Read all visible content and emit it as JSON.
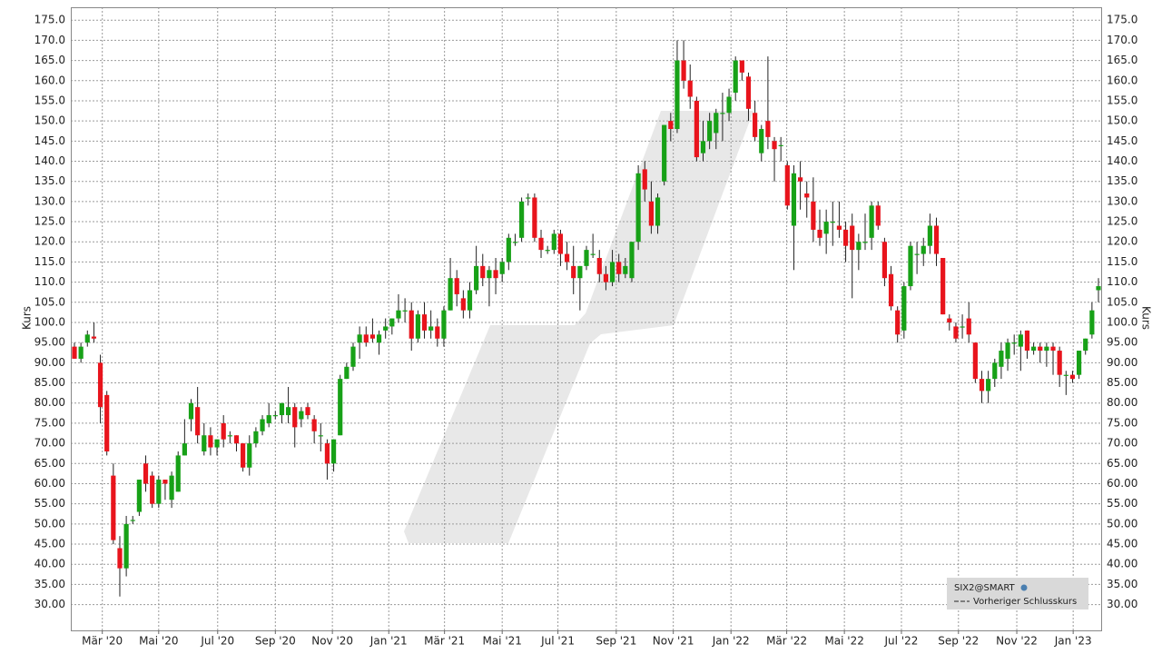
{
  "chart_data": {
    "type": "candlestick",
    "y_label": "Kurs",
    "up_color": "#17a117",
    "down_color": "#e8141c",
    "grid": true,
    "legend_position": "bottom-right",
    "legend": [
      "SIX2@SMART",
      "Vorheriger Schlusskurs"
    ],
    "open": [
      94,
      91,
      95,
      96.5,
      90,
      82,
      62,
      44,
      39,
      51,
      53,
      65,
      62,
      55,
      61,
      56,
      58,
      67,
      76,
      79,
      68,
      72,
      69,
      75,
      72,
      72,
      70,
      64,
      70,
      73,
      75,
      77,
      77,
      77,
      79,
      76,
      79,
      76,
      72,
      70,
      65,
      72,
      86,
      89,
      95,
      97,
      97,
      95,
      98,
      99,
      101,
      103,
      103,
      96,
      102,
      98,
      99,
      96,
      103,
      111,
      106,
      103,
      108,
      114,
      111,
      113,
      112,
      115,
      120,
      121,
      131,
      131,
      121,
      118,
      118,
      122,
      117,
      114,
      111,
      114,
      117,
      116,
      112,
      110,
      115,
      112,
      111,
      120,
      138,
      130,
      124,
      135,
      150,
      148,
      165,
      160,
      155,
      142,
      145,
      147,
      152,
      152,
      157,
      165,
      161,
      152,
      142,
      150,
      145,
      144,
      139,
      124,
      136,
      132,
      130,
      123,
      122,
      125,
      124,
      123,
      124,
      118,
      120,
      121,
      129,
      120,
      112,
      103,
      98,
      109,
      117,
      117,
      119,
      124,
      116,
      101,
      99,
      99,
      101,
      95,
      86,
      83,
      86,
      89,
      91,
      95,
      94,
      98,
      93,
      94,
      93,
      94,
      93,
      87,
      87,
      87,
      93,
      97,
      108
    ],
    "high": [
      95,
      95,
      98,
      100,
      92,
      83,
      65,
      47,
      52,
      52,
      61,
      67,
      63,
      62,
      61,
      63,
      68,
      76,
      81,
      84,
      75,
      74,
      71,
      77,
      73,
      72,
      70,
      72,
      74,
      77,
      80,
      78,
      80,
      84,
      80,
      79,
      80,
      77,
      75,
      71,
      71,
      87,
      90,
      95,
      99,
      99,
      101,
      98,
      101,
      101,
      107,
      106,
      105,
      103,
      105,
      103,
      101,
      104,
      116,
      113,
      108,
      110,
      119,
      117,
      114,
      116,
      116,
      122,
      122,
      131,
      132,
      132,
      123,
      119,
      123,
      123,
      120,
      119,
      114,
      119,
      122,
      118,
      114,
      118,
      117,
      116,
      120,
      139,
      140,
      135,
      132,
      149,
      152,
      170,
      170,
      164,
      156,
      150,
      152,
      153,
      157,
      158,
      166,
      165,
      162,
      155,
      149,
      166,
      146,
      146,
      140,
      139,
      140,
      135,
      136,
      128,
      128,
      130,
      130,
      125,
      127,
      122,
      127,
      130,
      130,
      121,
      114,
      104,
      110,
      120,
      120,
      121,
      127,
      126,
      116,
      102,
      100,
      102,
      105,
      95,
      88,
      88,
      91,
      95,
      96,
      97,
      98,
      98,
      95,
      95,
      95,
      95,
      94,
      88,
      88,
      93,
      96,
      105,
      111
    ],
    "low": [
      91,
      90,
      94,
      95,
      75,
      67,
      45,
      32,
      37,
      50,
      52,
      58,
      54,
      54,
      56,
      54,
      58,
      67,
      73,
      70,
      67,
      67,
      67,
      69,
      70,
      68,
      63,
      62,
      69,
      72,
      74,
      76,
      75,
      75,
      69,
      74,
      76,
      70,
      68,
      61,
      63,
      72,
      86,
      88,
      91,
      94,
      95,
      92,
      96,
      97,
      100,
      100,
      93,
      95,
      96,
      96,
      94,
      94,
      103,
      104,
      101,
      101,
      107,
      109,
      104,
      107,
      110,
      113,
      119,
      120,
      129,
      120,
      116,
      117,
      117,
      114,
      113,
      107,
      103,
      113,
      116,
      110,
      108,
      109,
      110,
      111,
      110,
      118,
      130,
      122,
      122,
      134,
      145,
      147,
      158,
      153,
      140,
      140,
      143,
      143,
      145,
      150,
      155,
      160,
      150,
      145,
      140,
      143,
      135,
      140,
      128,
      113,
      128,
      126,
      120,
      119,
      117,
      119,
      121,
      115,
      106,
      113,
      118,
      118,
      123,
      109,
      103,
      95,
      96,
      108,
      112,
      114,
      117,
      114,
      102,
      98,
      95,
      96,
      95,
      85,
      80,
      80,
      84,
      86,
      88,
      92,
      88,
      91,
      92,
      90,
      89,
      87,
      84,
      82,
      85,
      86,
      92,
      96,
      105
    ],
    "close": [
      91,
      94,
      97,
      96,
      79,
      68,
      46,
      39,
      50,
      51,
      61,
      60,
      55,
      61,
      60,
      62,
      67,
      70,
      80,
      72,
      72,
      69,
      71,
      71,
      72,
      70,
      64,
      70,
      73,
      76,
      77,
      77,
      80,
      79,
      74,
      78,
      77,
      73,
      72,
      65,
      71,
      86,
      89,
      94,
      97,
      95,
      96,
      97,
      99,
      101,
      103,
      103,
      96,
      102,
      98,
      99,
      96,
      103,
      111,
      107,
      103,
      108,
      114,
      111,
      113,
      111,
      115,
      121,
      120,
      130,
      131,
      121,
      118,
      118,
      122,
      117,
      115,
      111,
      114,
      118,
      117,
      112,
      110,
      115,
      112,
      114,
      120,
      137,
      133,
      124,
      131,
      149,
      148,
      165,
      160,
      156,
      141,
      145,
      150,
      152,
      152,
      156,
      165,
      162,
      153,
      146,
      148,
      146,
      143,
      144,
      129,
      137,
      135,
      131,
      123,
      121,
      125,
      125,
      123,
      119,
      118,
      120,
      120,
      129,
      124,
      111,
      104,
      97,
      109,
      119,
      117,
      119,
      124,
      117,
      102,
      100,
      96,
      99,
      97,
      86,
      83,
      86,
      90,
      93,
      95,
      95,
      97,
      93,
      94,
      93,
      94,
      93,
      87,
      87,
      86,
      93,
      96,
      103,
      109
    ],
    "xlim": [
      -0.56,
      158.42
    ],
    "xticks": [
      {
        "value": 4.3,
        "label": "Mär '20"
      },
      {
        "value": 13.0,
        "label": "Mai '20"
      },
      {
        "value": 22.1,
        "label": "Jul '20"
      },
      {
        "value": 31.0,
        "label": "Sep '20"
      },
      {
        "value": 39.8,
        "label": "Nov '20"
      },
      {
        "value": 48.5,
        "label": "Jan '21"
      },
      {
        "value": 57.1,
        "label": "Mär '21"
      },
      {
        "value": 66.0,
        "label": "Mai '21"
      },
      {
        "value": 74.6,
        "label": "Jul '21"
      },
      {
        "value": 83.6,
        "label": "Sep '21"
      },
      {
        "value": 92.4,
        "label": "Nov '21"
      },
      {
        "value": 101.3,
        "label": "Jan '22"
      },
      {
        "value": 109.9,
        "label": "Mär '22"
      },
      {
        "value": 118.8,
        "label": "Mai '22"
      },
      {
        "value": 127.6,
        "label": "Jul '22"
      },
      {
        "value": 136.4,
        "label": "Sep '22"
      },
      {
        "value": 145.4,
        "label": "Nov '22"
      },
      {
        "value": 154.1,
        "label": "Jan '23"
      }
    ],
    "ylim": [
      23.6,
      178.2
    ],
    "yticks": [
      {
        "value": 30,
        "label": "30.00"
      },
      {
        "value": 35,
        "label": "35.00"
      },
      {
        "value": 40,
        "label": "40.00"
      },
      {
        "value": 45,
        "label": "45.00"
      },
      {
        "value": 50,
        "label": "50.00"
      },
      {
        "value": 55,
        "label": "55.00"
      },
      {
        "value": 60,
        "label": "60.00"
      },
      {
        "value": 65,
        "label": "65.00"
      },
      {
        "value": 70,
        "label": "70.00"
      },
      {
        "value": 75,
        "label": "75.00"
      },
      {
        "value": 80,
        "label": "80.00"
      },
      {
        "value": 85,
        "label": "85.00"
      },
      {
        "value": 90,
        "label": "90.00"
      },
      {
        "value": 95,
        "label": "95.00"
      },
      {
        "value": 100,
        "label": "100.0"
      },
      {
        "value": 105,
        "label": "105.0"
      },
      {
        "value": 110,
        "label": "110.0"
      },
      {
        "value": 115,
        "label": "115.0"
      },
      {
        "value": 120,
        "label": "120.0"
      },
      {
        "value": 125,
        "label": "125.0"
      },
      {
        "value": 130,
        "label": "130.0"
      },
      {
        "value": 135,
        "label": "135.0"
      },
      {
        "value": 140,
        "label": "140.0"
      },
      {
        "value": 145,
        "label": "145.0"
      },
      {
        "value": 150,
        "label": "150.0"
      },
      {
        "value": 155,
        "label": "155.0"
      },
      {
        "value": 160,
        "label": "160.0"
      },
      {
        "value": 165,
        "label": "165.0"
      },
      {
        "value": 170,
        "label": "170.0"
      },
      {
        "value": 175,
        "label": "175.0"
      }
    ]
  }
}
